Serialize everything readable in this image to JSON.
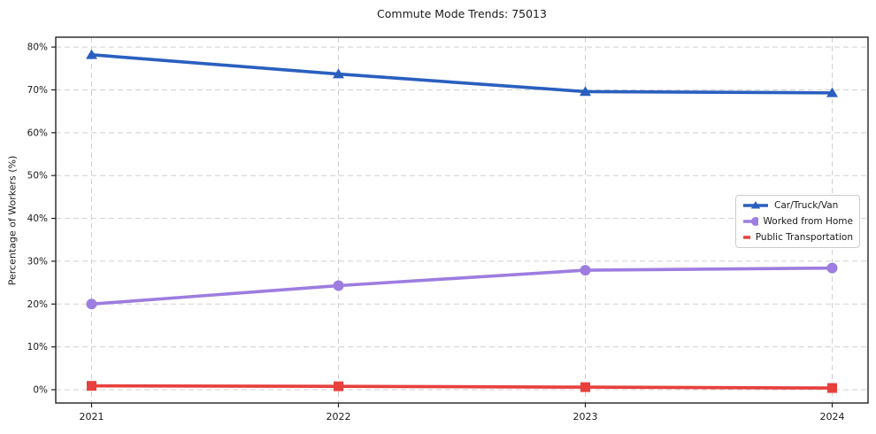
{
  "chart_data": {
    "type": "line",
    "title": "Commute Mode Trends: 75013",
    "xlabel": "",
    "ylabel": "Percentage of Workers (%)",
    "categories": [
      "2021",
      "2022",
      "2023",
      "2024"
    ],
    "series": [
      {
        "name": "Car/Truck/Van",
        "marker": "triangle",
        "color": "#2a5fbf",
        "values": [
          78.2,
          73.7,
          69.6,
          69.3
        ]
      },
      {
        "name": "Worked from Home",
        "marker": "circle",
        "color": "#9d7de0",
        "values": [
          20.0,
          24.3,
          27.9,
          28.4
        ]
      },
      {
        "name": "Public Transportation",
        "marker": "square",
        "color": "#e8403d",
        "values": [
          0.9,
          0.8,
          0.6,
          0.4
        ]
      }
    ],
    "ylim": [
      -3.1,
      82.3
    ],
    "yticks": [
      0,
      10,
      20,
      30,
      40,
      50,
      60,
      70,
      80
    ],
    "ytick_labels": [
      "0%",
      "10%",
      "20%",
      "30%",
      "40%",
      "50%",
      "60%",
      "70%",
      "80%"
    ],
    "grid": "dashed",
    "grid_color": "#d0d0d0",
    "spine_color": "#222222",
    "legend_position": "center right",
    "background": "#ffffff"
  }
}
